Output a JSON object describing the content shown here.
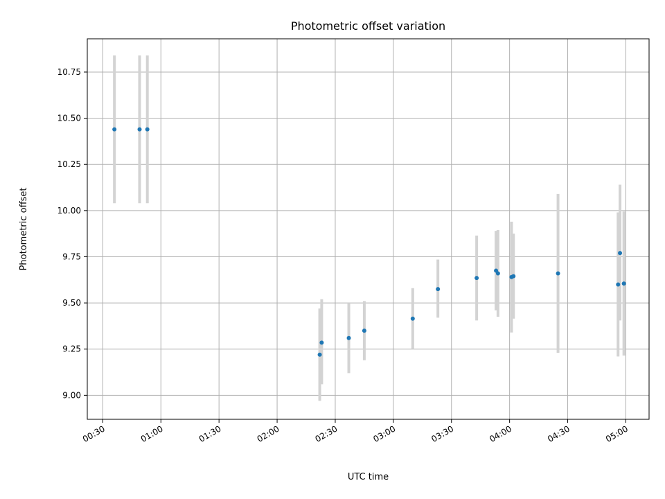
{
  "chart_data": {
    "type": "scatter",
    "title": "Photometric offset variation",
    "xlabel": "UTC time",
    "ylabel": "Photometric offset",
    "x_ticks": [
      "00:30",
      "01:00",
      "01:30",
      "02:00",
      "02:30",
      "03:00",
      "03:30",
      "04:00",
      "04:30",
      "05:00"
    ],
    "y_ticks": [
      "9.00",
      "9.25",
      "9.50",
      "9.75",
      "10.00",
      "10.25",
      "10.50",
      "10.75"
    ],
    "xlim": [
      "00:22",
      "05:12"
    ],
    "ylim": [
      8.87,
      10.93
    ],
    "grid": true,
    "points": [
      {
        "x": "00:36",
        "y": 10.44,
        "err_low": 10.04,
        "err_high": 10.84
      },
      {
        "x": "00:49",
        "y": 10.44,
        "err_low": 10.04,
        "err_high": 10.84
      },
      {
        "x": "00:53",
        "y": 10.44,
        "err_low": 10.04,
        "err_high": 10.84
      },
      {
        "x": "02:22",
        "y": 9.22,
        "err_low": 8.97,
        "err_high": 9.47
      },
      {
        "x": "02:23",
        "y": 9.285,
        "err_low": 9.06,
        "err_high": 9.52
      },
      {
        "x": "02:37",
        "y": 9.31,
        "err_low": 9.12,
        "err_high": 9.5
      },
      {
        "x": "02:45",
        "y": 9.35,
        "err_low": 9.19,
        "err_high": 9.51
      },
      {
        "x": "03:10",
        "y": 9.415,
        "err_low": 9.25,
        "err_high": 9.58
      },
      {
        "x": "03:23",
        "y": 9.575,
        "err_low": 9.42,
        "err_high": 9.735
      },
      {
        "x": "03:43",
        "y": 9.635,
        "err_low": 9.405,
        "err_high": 9.865
      },
      {
        "x": "03:53",
        "y": 9.675,
        "err_low": 9.46,
        "err_high": 9.89
      },
      {
        "x": "03:54",
        "y": 9.66,
        "err_low": 9.425,
        "err_high": 9.895
      },
      {
        "x": "04:01",
        "y": 9.64,
        "err_low": 9.34,
        "err_high": 9.94
      },
      {
        "x": "04:02",
        "y": 9.645,
        "err_low": 9.415,
        "err_high": 9.875
      },
      {
        "x": "04:25",
        "y": 9.66,
        "err_low": 9.23,
        "err_high": 10.09
      },
      {
        "x": "04:56",
        "y": 9.6,
        "err_low": 9.21,
        "err_high": 9.99
      },
      {
        "x": "04:57",
        "y": 9.77,
        "err_low": 9.405,
        "err_high": 10.14
      },
      {
        "x": "04:59",
        "y": 9.605,
        "err_low": 9.215,
        "err_high": 9.995
      }
    ],
    "colors": {
      "point": "#1f77b4",
      "errbar": "#d3d3d3",
      "grid": "#b0b0b0"
    }
  }
}
